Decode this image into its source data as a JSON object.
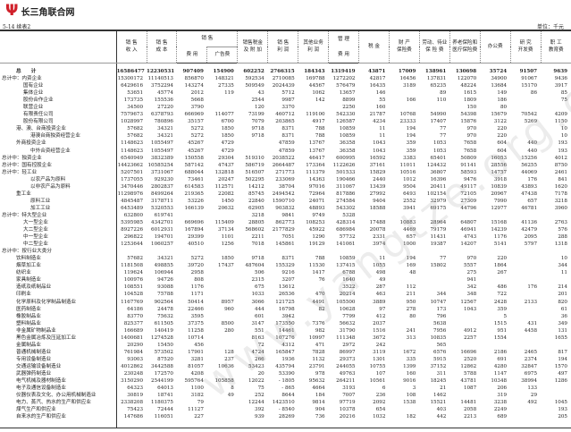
{
  "site": {
    "logo_icon": "psi-logo-icon",
    "name": "长三角联合网",
    "brand_color": "#d0202a"
  },
  "table_no": "5-14  续表2",
  "unit": "单位：千元",
  "watermark": "www.yangtze.org.cn",
  "headers": {
    "sales_revenue": "销 售\n收 入",
    "sales_cost": "销 售\n成 本",
    "sales_expense_top": "销 售",
    "sales_expense": "费 用",
    "advertising": "广告费",
    "sales_tax": "销售税金\n及 附 加",
    "sales_profit": "销 售\n利 润",
    "other_profit": "其他业务\n利 润",
    "admin_top": "管 理",
    "admin_expense": "费 用",
    "tax": "税 金",
    "property_insurance": "财 产\n保险费",
    "unemployment_insurance": "劳动、待业\n保 险 费",
    "pension_medical": "养老保险和\n医疗保险费",
    "office": "办公费",
    "rnd": "研 究\n开发费",
    "training": "职 工\n教育费"
  },
  "rows": [
    {
      "label": "总　　计",
      "indent": 2,
      "bold": true,
      "values": [
        "16586477",
        "12230531",
        "907409",
        "154900",
        "602252",
        "2766315",
        "184343",
        "1319419",
        "43871",
        "17009",
        "138961",
        "130698",
        "35724",
        "91507",
        "9639"
      ]
    },
    {
      "label": "总计中：内资企业",
      "indent": 0,
      "values": [
        "15300172",
        "11140513",
        "856870",
        "148321",
        "592534",
        "2710085",
        "169788",
        "1272202",
        "42817",
        "16456",
        "137831",
        "122070",
        "34900",
        "91067",
        "9436"
      ]
    },
    {
      "label": "国有企业",
      "indent": 3,
      "values": [
        "6429616",
        "3752294",
        "143274",
        "27335",
        "509549",
        "2024439",
        "44567",
        "576479",
        "16435",
        "3189",
        "65235",
        "48224",
        "13684",
        "15170",
        "3917"
      ]
    },
    {
      "label": "集体企业",
      "indent": 3,
      "values": [
        "53651",
        "45774",
        "2012",
        "119",
        "43",
        "5712",
        "1062",
        "13657",
        "146",
        "",
        "89",
        "1615",
        "149",
        "86",
        "85"
      ]
    },
    {
      "label": "股份合作企业",
      "indent": 3,
      "values": [
        "173735",
        "155536",
        "5668",
        "",
        "2544",
        "9987",
        "142",
        "8899",
        "55",
        "166",
        "110",
        "1809",
        "186",
        "",
        "75"
      ]
    },
    {
      "label": "联营企业",
      "indent": 3,
      "values": [
        "34500",
        "27220",
        "3790",
        "",
        "120",
        "3370",
        "",
        "2250",
        "160",
        "",
        "",
        "150",
        "80",
        "",
        ""
      ]
    },
    {
      "label": "有限责任公司",
      "indent": 3,
      "values": [
        "7579673",
        "6378793",
        "666969",
        "114077",
        "73199",
        "460712",
        "119100",
        "542330",
        "21787",
        "10768",
        "54990",
        "54398",
        "15679",
        "70542",
        "4209"
      ]
    },
    {
      "label": "股份有限公司",
      "indent": 3,
      "values": [
        "1028997",
        "780896",
        "35157",
        "6700",
        "7079",
        "203865",
        "4917",
        "126587",
        "4234",
        "23333",
        "17407",
        "15876",
        "3122",
        "5269",
        "1150"
      ]
    },
    {
      "label": "港、澳、台商投资企业",
      "indent": 2,
      "values": [
        "57682",
        "34321",
        "5272",
        "1850",
        "9718",
        "8371",
        "788",
        "10859",
        "11",
        "194",
        "77",
        "970",
        "220",
        "",
        "10"
      ]
    },
    {
      "label": "港澳台商独资经营企业",
      "indent": 4,
      "values": [
        "57682",
        "34321",
        "5272",
        "1850",
        "9718",
        "8371",
        "788",
        "10859",
        "11",
        "194",
        "77",
        "970",
        "220",
        "",
        "10"
      ]
    },
    {
      "label": "外商投资企业",
      "indent": 2,
      "values": [
        "1148623",
        "1055497",
        "45267",
        "4729",
        "",
        "47859",
        "13767",
        "36358",
        "1043",
        "359",
        "1053",
        "7658",
        "604",
        "440",
        "193"
      ]
    },
    {
      "label": "中外合资经营企业",
      "indent": 4,
      "values": [
        "1148623",
        "1055497",
        "45267",
        "4729",
        "",
        "47859",
        "13767",
        "36358",
        "1043",
        "359",
        "1053",
        "7658",
        "604",
        "440",
        "193"
      ]
    },
    {
      "label": "总计中：独资企业",
      "indent": 0,
      "values": [
        "6540949",
        "3832389",
        "150558",
        "29304",
        "519310",
        "2038522",
        "46417",
        "600995",
        "16592",
        "3383",
        "65401",
        "50809",
        "16053",
        "15256",
        "4012"
      ]
    },
    {
      "label": "总计中：国有控股企业",
      "indent": 0,
      "values": [
        "14423662",
        "10585254",
        "587142",
        "47437",
        "586719",
        "2664487",
        "173364",
        "1122626",
        "37161",
        "11011",
        "124432",
        "91141",
        "28556",
        "56255",
        "8750"
      ]
    },
    {
      "label": "总计中：轻工业",
      "indent": 0,
      "values": [
        "5207501",
        "3731067",
        "688044",
        "132818",
        "516507",
        "271773",
        "111379",
        "501533",
        "15829",
        "10516",
        "36807",
        "58593",
        "14757",
        "44069",
        "2461"
      ]
    },
    {
      "label": "以农产品为原料",
      "indent": 4,
      "values": [
        "1737055",
        "929230",
        "73461",
        "20247",
        "502295",
        "233069",
        "14363",
        "190466",
        "2440",
        "1012",
        "16396",
        "9476",
        "3918",
        "176",
        "841"
      ]
    },
    {
      "label": "以非农产品为原料",
      "indent": 4,
      "values": [
        "3470446",
        "2802837",
        "614583",
        "112571",
        "14212",
        "38704",
        "97016",
        "311067",
        "13439",
        "9504",
        "20411",
        "49117",
        "10839",
        "43893",
        "1620"
      ]
    },
    {
      "label": "重工业",
      "indent": 2,
      "values": [
        "11298976",
        "8499264",
        "219365",
        "22082",
        "85745",
        "2494542",
        "72964",
        "817886",
        "27992",
        "6493",
        "102154",
        "72105",
        "20967",
        "47438",
        "7178"
      ]
    },
    {
      "label": "原料工业",
      "indent": 4,
      "values": [
        "4845487",
        "3178711",
        "53226",
        "1450",
        "22840",
        "1590710",
        "24071",
        "274584",
        "9404",
        "2552",
        "32979",
        "27309",
        "7990",
        "657",
        "3218"
      ]
    },
    {
      "label": "加工工业",
      "indent": 4,
      "values": [
        "6453489",
        "5320553",
        "166139",
        "20632",
        "62905",
        "903832",
        "48893",
        "543302",
        "18588",
        "3941",
        "69175",
        "44796",
        "12977",
        "46781",
        "3960"
      ]
    },
    {
      "label": "总计中：特大型企业",
      "indent": 0,
      "values": [
        "632800",
        "619741",
        "",
        "",
        "3218",
        "9841",
        "9749",
        "5328",
        "",
        "",
        "",
        "",
        "",
        "",
        ""
      ]
    },
    {
      "label": "大一型企业",
      "indent": 3,
      "values": [
        "5395985",
        "4342701",
        "669696",
        "115409",
        "28805",
        "862773",
        "108253",
        "428314",
        "17488",
        "10883",
        "28964",
        "64807",
        "15168",
        "41136",
        "2763"
      ]
    },
    {
      "label": "大二型企业",
      "indent": 3,
      "values": [
        "8927226",
        "6012931",
        "167894",
        "37134",
        "568602",
        "2177829",
        "45922",
        "686984",
        "20078",
        "4469",
        "79179",
        "46941",
        "14239",
        "42479",
        "576"
      ]
    },
    {
      "label": "中一型企业",
      "indent": 3,
      "values": [
        "296822",
        "194701",
        "29399",
        "1101",
        "2211",
        "7051",
        "1290",
        "57732",
        "2331",
        "657",
        "11431",
        "4743",
        "1176",
        "2095",
        "288"
      ]
    },
    {
      "label": "中二型企业",
      "indent": 3,
      "values": [
        "1253644",
        "1060257",
        "40510",
        "1256",
        "7018",
        "145861",
        "19129",
        "141061",
        "3974",
        "1000",
        "19387",
        "14207",
        "5141",
        "5797",
        "1318"
      ]
    },
    {
      "label": "总计中：按行业大类分",
      "indent": 0,
      "values": [
        "",
        "",
        "",
        "",
        "",
        "",
        "",
        "",
        "",
        "",
        "",
        "",
        "",
        "",
        ""
      ]
    },
    {
      "label": "饮料制造业",
      "indent": 2,
      "values": [
        "57682",
        "34321",
        "5272",
        "1850",
        "9718",
        "8371",
        "788",
        "10859",
        "11",
        "194",
        "77",
        "970",
        "220",
        "",
        "10"
      ]
    },
    {
      "label": "烟草加工业",
      "indent": 2,
      "values": [
        "1181508",
        "498855",
        "39720",
        "17437",
        "487604",
        "155329",
        "11530",
        "137415",
        "1055",
        "169",
        "15802",
        "5557",
        "1864",
        "",
        "344"
      ]
    },
    {
      "label": "纺织业",
      "indent": 2,
      "values": [
        "119624",
        "106944",
        "2958",
        "",
        "506",
        "9216",
        "1417",
        "6788",
        "498",
        "48",
        "",
        "275",
        "267",
        "",
        "11"
      ]
    },
    {
      "label": "家具制造业",
      "indent": 2,
      "values": [
        "100976",
        "94726",
        "808",
        "",
        "2315",
        "3207",
        "76",
        "1640",
        "49",
        "",
        "",
        "941",
        "",
        "",
        ""
      ]
    },
    {
      "label": "造纸及纸制品业",
      "indent": 2,
      "values": [
        "108551",
        "93088",
        "1176",
        "",
        "675",
        "13612",
        "",
        "3522",
        "287",
        "112",
        "",
        "342",
        "486",
        "176",
        "214"
      ]
    },
    {
      "label": "印刷业",
      "indent": 2,
      "values": [
        "104528",
        "75788",
        "1171",
        "",
        "1033",
        "26536",
        "470",
        "20214",
        "463",
        "211",
        "344",
        "348",
        "722",
        "",
        "201"
      ]
    },
    {
      "label": "化学原料及化学制品制造业",
      "indent": 2,
      "values": [
        "1167769",
        "902564",
        "50414",
        "8957",
        "3066",
        "121725",
        "4491",
        "105500",
        "3889",
        "950",
        "10747",
        "12567",
        "2428",
        "2133",
        "820"
      ]
    },
    {
      "label": "医药制造业",
      "indent": 2,
      "values": [
        "64186",
        "24478",
        "22466",
        "960",
        "444",
        "16798",
        "82",
        "10628",
        "97",
        "278",
        "173",
        "1043",
        "359",
        "",
        "61"
      ]
    },
    {
      "label": "橡胶制品业",
      "indent": 2,
      "values": [
        "83770",
        "75632",
        "3595",
        "",
        "601",
        "3942",
        "",
        "7799",
        "412",
        "80",
        "796",
        "",
        "5",
        "",
        "36"
      ]
    },
    {
      "label": "塑料制品业",
      "indent": 2,
      "values": [
        "825377",
        "611505",
        "37375",
        "8500",
        "3147",
        "173550",
        "7376",
        "56632",
        "2037",
        "",
        "5638",
        "",
        "1515",
        "431",
        "349"
      ]
    },
    {
      "label": "非金属矿物制品业",
      "indent": 2,
      "values": [
        "166689",
        "140419",
        "11258",
        "280",
        "551",
        "14461",
        "982",
        "31790",
        "1516",
        "241",
        "7956",
        "4912",
        "951",
        "4458",
        "131"
      ]
    },
    {
      "label": "黑色金属冶炼及压延加工业",
      "indent": 2,
      "values": [
        "1400681",
        "1274528",
        "10714",
        "",
        "8163",
        "107276",
        "10997",
        "111348",
        "3672",
        "313",
        "10835",
        "2257",
        "1554",
        "",
        "1655"
      ]
    },
    {
      "label": "金属制品业",
      "indent": 2,
      "values": [
        "20290",
        "15450",
        "456",
        "",
        "72",
        "4312",
        "471",
        "2972",
        "242",
        "",
        "565",
        "",
        "",
        "",
        ""
      ]
    },
    {
      "label": "普通机械制造业",
      "indent": 2,
      "values": [
        "761984",
        "573502",
        "17901",
        "128",
        "4724",
        "165847",
        "7828",
        "86997",
        "3119",
        "1672",
        "6576",
        "16696",
        "2186",
        "2465",
        "817"
      ]
    },
    {
      "label": "专用设备制造业",
      "indent": 2,
      "values": [
        "93003",
        "87520",
        "3281",
        "237",
        "266",
        "1936",
        "1132",
        "29373",
        "1301",
        "335",
        "5915",
        "2520",
        "691",
        "2374",
        "194"
      ]
    },
    {
      "label": "交通运输设备制造业",
      "indent": 2,
      "values": [
        "4012862",
        "3442588",
        "81057",
        "10636",
        "53423",
        "435794",
        "23791",
        "244055",
        "10755",
        "1399",
        "37152",
        "12862",
        "4280",
        "32847",
        "1570"
      ]
    },
    {
      "label": "武器弹药制造业",
      "indent": 2,
      "values": [
        "230248",
        "172570",
        "4208",
        "",
        "20",
        "53390",
        "978",
        "49763",
        "107",
        "160",
        "311",
        "5788",
        "1147",
        "6975",
        "497"
      ]
    },
    {
      "label": "电气机械及器材制造业",
      "indent": 2,
      "values": [
        "3150290",
        "2544199",
        "595764",
        "105858",
        "12022",
        "- 1805",
        "95632",
        "264211",
        "10561",
        "9016",
        "18245",
        "43781",
        "10348",
        "38994",
        "1286"
      ]
    },
    {
      "label": "电子及通信设备制造业",
      "indent": 2,
      "values": [
        "64323",
        "64013",
        "1100",
        "8",
        "75",
        "- 865",
        "4664",
        "3193",
        "6",
        "3",
        "21",
        "1087",
        "206",
        "133",
        ""
      ]
    },
    {
      "label": "仪器仪表及文化、办公用机械制造业",
      "indent": 2,
      "values": [
        "30819",
        "18741",
        "3182",
        "49",
        "252",
        "8644",
        "184",
        "7007",
        "236",
        "108",
        "1462",
        "",
        "319",
        "29",
        ""
      ]
    },
    {
      "label": "电力、蒸汽、热水的生产和供应业",
      "indent": 2,
      "values": [
        "2338208",
        "1180375",
        "79",
        "",
        "12244",
        "1423510",
        "9814",
        "97719",
        "2092",
        "1538",
        "15521",
        "14481",
        "3238",
        "492",
        "1045"
      ]
    },
    {
      "label": "煤气生产和供应业",
      "indent": 2,
      "values": [
        "75423",
        "72444",
        "11127",
        "",
        "392",
        "- 8540",
        "904",
        "10378",
        "654",
        "",
        "403",
        "2058",
        "2249",
        "",
        "193"
      ]
    },
    {
      "label": "自来水的生产和供应业",
      "indent": 2,
      "values": [
        "147686",
        "116051",
        "227",
        "",
        "939",
        "28269",
        "736",
        "20216",
        "1032",
        "182",
        "442",
        "2213",
        "689",
        "",
        "205"
      ]
    }
  ]
}
